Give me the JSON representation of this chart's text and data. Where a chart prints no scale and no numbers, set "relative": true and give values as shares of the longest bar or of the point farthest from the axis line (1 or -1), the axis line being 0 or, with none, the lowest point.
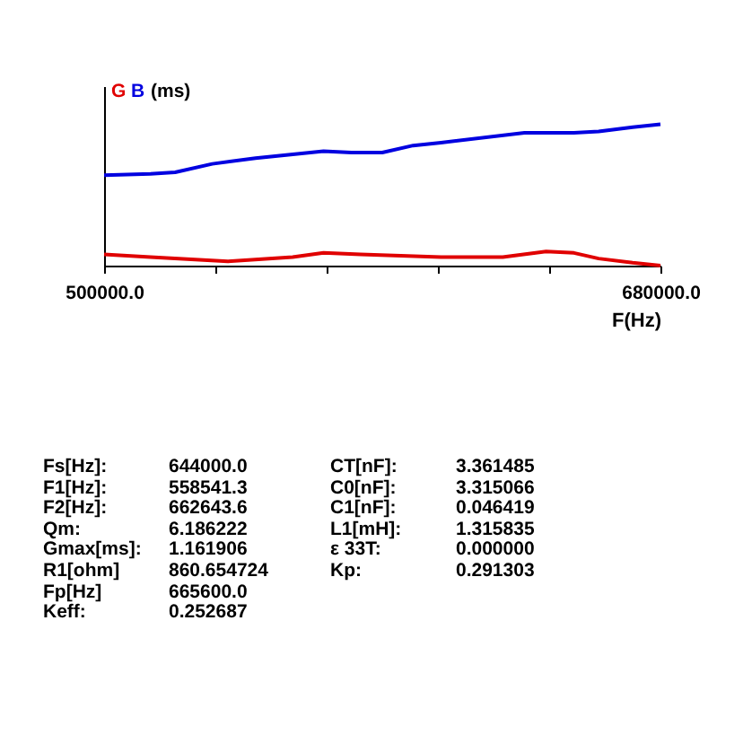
{
  "chart_data": {
    "type": "line",
    "relative": true,
    "ylabel": "(ms)",
    "xlabel": "F(Hz)",
    "xlim": [
      500000,
      680000
    ],
    "xticks": [
      {
        "value": 500000,
        "label": "500000.0"
      },
      {
        "value": 536000,
        "label": null
      },
      {
        "value": 572000,
        "label": null
      },
      {
        "value": 608000,
        "label": null
      },
      {
        "value": 644000,
        "label": null
      },
      {
        "value": 680000,
        "label": "680000.0"
      }
    ],
    "marker": "none",
    "line_style": "solid",
    "series": [
      {
        "name": "G",
        "color": "#e00000",
        "x": [
          500000,
          515000,
          540000,
          561000,
          571000,
          583000,
          609000,
          629000,
          643000,
          652000,
          660000,
          671000,
          680000
        ],
        "values": [
          0.08,
          0.06,
          0.03,
          0.06,
          0.09,
          0.08,
          0.06,
          0.06,
          0.1,
          0.09,
          0.05,
          0.02,
          0.0
        ]
      },
      {
        "name": "B",
        "color": "#0000e0",
        "x": [
          500000,
          515000,
          523000,
          535000,
          549000,
          571000,
          580000,
          590000,
          600000,
          609000,
          636000,
          652000,
          660000,
          671000,
          680000
        ],
        "values": [
          0.64,
          0.65,
          0.66,
          0.72,
          0.76,
          0.81,
          0.8,
          0.8,
          0.85,
          0.87,
          0.94,
          0.94,
          0.95,
          0.98,
          1.0
        ]
      }
    ],
    "annotations": [
      "Fs[Hz]: 644000.0",
      "F1[Hz]: 558541.3",
      "F2[Hz]: 662643.6",
      "Qm: 6.186222",
      "Gmax[ms]: 1.161906",
      "R1[ohm] 860.654724",
      "Fp[Hz] 665600.0",
      "Keff: 0.252687",
      "CT[nF]: 3.361485",
      "C0[nF]: 3.315066",
      "C1[nF]: 0.046419",
      "L1[mH]: 1.315835",
      "ε 33T: 0.000000",
      "Kp: 0.291303"
    ]
  }
}
